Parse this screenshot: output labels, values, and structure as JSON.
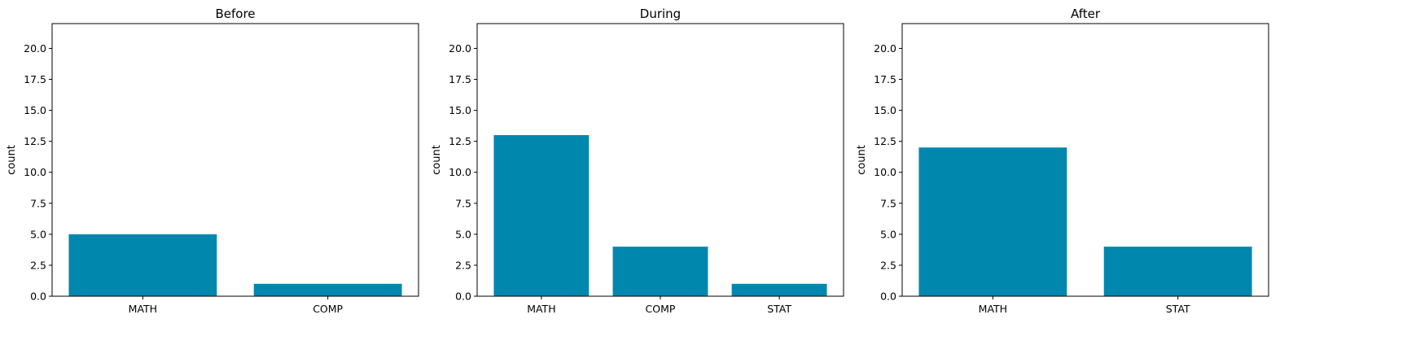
{
  "figure": {
    "bar_color": "#0087ad"
  },
  "chart_data": [
    {
      "type": "bar",
      "title": "Before",
      "xlabel": "",
      "ylabel": "count",
      "categories": [
        "MATH",
        "COMP"
      ],
      "values": [
        5,
        1
      ],
      "ylim": [
        0,
        22
      ],
      "yticks": [
        0.0,
        2.5,
        5.0,
        7.5,
        10.0,
        12.5,
        15.0,
        17.5,
        20.0
      ],
      "ytick_labels": [
        "0.0",
        "2.5",
        "5.0",
        "7.5",
        "10.0",
        "12.5",
        "15.0",
        "17.5",
        "20.0"
      ],
      "grid": false,
      "legend": "none"
    },
    {
      "type": "bar",
      "title": "During",
      "xlabel": "",
      "ylabel": "count",
      "categories": [
        "MATH",
        "COMP",
        "STAT"
      ],
      "values": [
        13,
        4,
        1
      ],
      "ylim": [
        0,
        22
      ],
      "yticks": [
        0.0,
        2.5,
        5.0,
        7.5,
        10.0,
        12.5,
        15.0,
        17.5,
        20.0
      ],
      "ytick_labels": [
        "0.0",
        "2.5",
        "5.0",
        "7.5",
        "10.0",
        "12.5",
        "15.0",
        "17.5",
        "20.0"
      ],
      "grid": false,
      "legend": "none"
    },
    {
      "type": "bar",
      "title": "After",
      "xlabel": "",
      "ylabel": "count",
      "categories": [
        "MATH",
        "STAT"
      ],
      "values": [
        12,
        4
      ],
      "ylim": [
        0,
        22
      ],
      "yticks": [
        0.0,
        2.5,
        5.0,
        7.5,
        10.0,
        12.5,
        15.0,
        17.5,
        20.0
      ],
      "ytick_labels": [
        "0.0",
        "2.5",
        "5.0",
        "7.5",
        "10.0",
        "12.5",
        "15.0",
        "17.5",
        "20.0"
      ],
      "grid": false,
      "legend": "none"
    }
  ]
}
